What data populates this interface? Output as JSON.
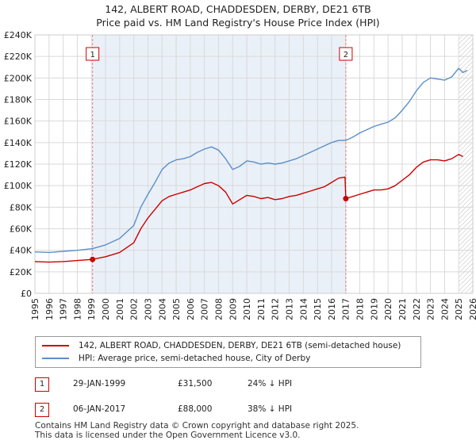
{
  "title_line1": "142, ALBERT ROAD, CHADDESDEN, DERBY, DE21 6TB",
  "title_line2": "Price paid vs. HM Land Registry's House Price Index (HPI)",
  "colors": {
    "property": "#cc0000",
    "hpi": "#5b8fc9",
    "grid": "#d9d9d9",
    "shade": "#eaf0f8",
    "marker_line": "#e08080"
  },
  "chart_data": {
    "type": "line",
    "xlim": [
      1995,
      2026
    ],
    "ylim": [
      0,
      240000
    ],
    "x_ticks": [
      "1995",
      "1996",
      "1997",
      "1998",
      "1999",
      "2000",
      "2001",
      "2002",
      "2003",
      "2004",
      "2005",
      "2006",
      "2007",
      "2008",
      "2009",
      "2010",
      "2011",
      "2012",
      "2013",
      "2014",
      "2015",
      "2016",
      "2017",
      "2018",
      "2019",
      "2020",
      "2021",
      "2022",
      "2023",
      "2024",
      "2025",
      "2026"
    ],
    "y_ticks": [
      {
        "value": 0,
        "label": "£0"
      },
      {
        "value": 20000,
        "label": "£20K"
      },
      {
        "value": 40000,
        "label": "£40K"
      },
      {
        "value": 60000,
        "label": "£60K"
      },
      {
        "value": 80000,
        "label": "£80K"
      },
      {
        "value": 100000,
        "label": "£100K"
      },
      {
        "value": 120000,
        "label": "£120K"
      },
      {
        "value": 140000,
        "label": "£140K"
      },
      {
        "value": 160000,
        "label": "£160K"
      },
      {
        "value": 180000,
        "label": "£180K"
      },
      {
        "value": 200000,
        "label": "£200K"
      },
      {
        "value": 220000,
        "label": "£220K"
      },
      {
        "value": 240000,
        "label": "£240K"
      }
    ],
    "series": [
      {
        "name": "142, ALBERT ROAD, CHADDESDEN, DERBY, DE21 6TB (semi-detached house)",
        "points": [
          [
            1995.0,
            29500
          ],
          [
            1996.0,
            29000
          ],
          [
            1997.0,
            29500
          ],
          [
            1998.0,
            30500
          ],
          [
            1999.08,
            31500
          ],
          [
            2000.0,
            34000
          ],
          [
            2001.0,
            38000
          ],
          [
            2002.0,
            47000
          ],
          [
            2002.5,
            60000
          ],
          [
            2003.0,
            70000
          ],
          [
            2003.5,
            78000
          ],
          [
            2004.0,
            86000
          ],
          [
            2004.5,
            90000
          ],
          [
            2005.0,
            92000
          ],
          [
            2005.5,
            94000
          ],
          [
            2006.0,
            96000
          ],
          [
            2006.5,
            99000
          ],
          [
            2007.0,
            102000
          ],
          [
            2007.5,
            103000
          ],
          [
            2008.0,
            100000
          ],
          [
            2008.5,
            94000
          ],
          [
            2009.0,
            83000
          ],
          [
            2009.5,
            87000
          ],
          [
            2010.0,
            91000
          ],
          [
            2010.5,
            90000
          ],
          [
            2011.0,
            88000
          ],
          [
            2011.5,
            89000
          ],
          [
            2012.0,
            87000
          ],
          [
            2012.5,
            88000
          ],
          [
            2013.0,
            90000
          ],
          [
            2013.5,
            91000
          ],
          [
            2014.0,
            93000
          ],
          [
            2014.5,
            95000
          ],
          [
            2015.0,
            97000
          ],
          [
            2015.5,
            99000
          ],
          [
            2016.0,
            103000
          ],
          [
            2016.5,
            107000
          ],
          [
            2016.95,
            108000
          ],
          [
            2017.01,
            88000
          ],
          [
            2017.5,
            90000
          ],
          [
            2018.0,
            92000
          ],
          [
            2018.5,
            94000
          ],
          [
            2019.0,
            96000
          ],
          [
            2019.5,
            96000
          ],
          [
            2020.0,
            97000
          ],
          [
            2020.5,
            100000
          ],
          [
            2021.0,
            105000
          ],
          [
            2021.5,
            110000
          ],
          [
            2022.0,
            117000
          ],
          [
            2022.5,
            122000
          ],
          [
            2023.0,
            124000
          ],
          [
            2023.5,
            124000
          ],
          [
            2024.0,
            123000
          ],
          [
            2024.5,
            125000
          ],
          [
            2025.0,
            129000
          ],
          [
            2025.3,
            127000
          ]
        ]
      },
      {
        "name": "HPI: Average price, semi-detached house, City of Derby",
        "points": [
          [
            1995.0,
            38500
          ],
          [
            1996.0,
            38000
          ],
          [
            1997.0,
            39000
          ],
          [
            1998.0,
            40000
          ],
          [
            1999.08,
            41500
          ],
          [
            2000.0,
            45000
          ],
          [
            2001.0,
            51000
          ],
          [
            2002.0,
            63000
          ],
          [
            2002.5,
            80000
          ],
          [
            2003.0,
            92000
          ],
          [
            2003.5,
            103000
          ],
          [
            2004.0,
            115000
          ],
          [
            2004.5,
            121000
          ],
          [
            2005.0,
            124000
          ],
          [
            2005.5,
            125000
          ],
          [
            2006.0,
            127000
          ],
          [
            2006.5,
            131000
          ],
          [
            2007.0,
            134000
          ],
          [
            2007.5,
            136000
          ],
          [
            2008.0,
            133000
          ],
          [
            2008.5,
            125000
          ],
          [
            2009.0,
            115000
          ],
          [
            2009.5,
            118000
          ],
          [
            2010.0,
            123000
          ],
          [
            2010.5,
            122000
          ],
          [
            2011.0,
            120000
          ],
          [
            2011.5,
            121000
          ],
          [
            2012.0,
            120000
          ],
          [
            2012.5,
            121000
          ],
          [
            2013.0,
            123000
          ],
          [
            2013.5,
            125000
          ],
          [
            2014.0,
            128000
          ],
          [
            2014.5,
            131000
          ],
          [
            2015.0,
            134000
          ],
          [
            2015.5,
            137000
          ],
          [
            2016.0,
            140000
          ],
          [
            2016.5,
            142000
          ],
          [
            2017.01,
            142000
          ],
          [
            2017.5,
            145000
          ],
          [
            2018.0,
            149000
          ],
          [
            2018.5,
            152000
          ],
          [
            2019.0,
            155000
          ],
          [
            2019.5,
            157000
          ],
          [
            2020.0,
            159000
          ],
          [
            2020.5,
            163000
          ],
          [
            2021.0,
            170000
          ],
          [
            2021.5,
            178000
          ],
          [
            2022.0,
            188000
          ],
          [
            2022.5,
            196000
          ],
          [
            2023.0,
            200000
          ],
          [
            2023.5,
            199000
          ],
          [
            2024.0,
            198000
          ],
          [
            2024.5,
            201000
          ],
          [
            2025.0,
            209000
          ],
          [
            2025.3,
            205000
          ],
          [
            2025.6,
            207000
          ]
        ]
      }
    ],
    "sales": [
      {
        "id": "1",
        "x": 1999.08,
        "y": 31500
      },
      {
        "id": "2",
        "x": 2017.01,
        "y": 88000
      }
    ],
    "hatch_from": 2025.0
  },
  "legend": {
    "property_label": "142, ALBERT ROAD, CHADDESDEN, DERBY, DE21 6TB (semi-detached house)",
    "hpi_label": "HPI: Average price, semi-detached house, City of Derby"
  },
  "transactions": [
    {
      "num": "1",
      "date": "29-JAN-1999",
      "price": "£31,500",
      "hpi": "24% ↓ HPI"
    },
    {
      "num": "2",
      "date": "06-JAN-2017",
      "price": "£88,000",
      "hpi": "38% ↓ HPI"
    }
  ],
  "footer": {
    "line1": "Contains HM Land Registry data © Crown copyright and database right 2025.",
    "line2": "This data is licensed under the Open Government Licence v3.0."
  }
}
